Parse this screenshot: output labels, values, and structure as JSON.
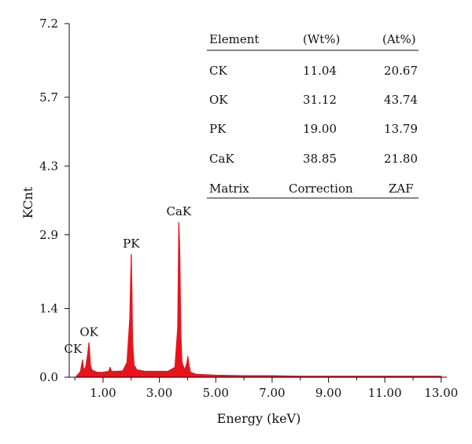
{
  "chart_data": {
    "type": "area",
    "xlabel": "Energy (keV)",
    "ylabel": "KCnt",
    "xlim": [
      -0.2,
      13.2
    ],
    "ylim": [
      0,
      7.2
    ],
    "x_ticks": [
      1.0,
      3.0,
      5.0,
      7.0,
      9.0,
      11.0,
      13.0
    ],
    "x_tick_labels": [
      "1.00",
      "3.00",
      "5.00",
      "7.00",
      "9.00",
      "11.00",
      "13.00"
    ],
    "y_ticks": [
      0.0,
      1.4,
      2.9,
      4.3,
      5.7,
      7.2
    ],
    "y_tick_labels": [
      "0.0",
      "1.4",
      "2.9",
      "4.3",
      "5.7",
      "7.2"
    ],
    "grid": false,
    "series_color": "#e8141c",
    "series": [
      {
        "x": [
          0.05,
          0.1,
          0.15,
          0.2,
          0.25,
          0.27,
          0.3,
          0.35,
          0.4,
          0.45,
          0.5,
          0.52,
          0.55,
          0.6,
          0.7,
          0.8,
          1.0,
          1.2,
          1.25,
          1.3,
          1.5,
          1.7,
          1.85,
          1.95,
          2.0,
          2.02,
          2.05,
          2.1,
          2.2,
          2.5,
          3.0,
          3.3,
          3.55,
          3.65,
          3.69,
          3.72,
          3.76,
          3.8,
          3.9,
          3.98,
          4.01,
          4.05,
          4.1,
          4.3,
          5.0,
          6.0,
          7.0,
          8.0,
          9.0,
          10.0,
          11.0,
          12.0,
          13.0
        ],
        "y": [
          0.02,
          0.05,
          0.08,
          0.12,
          0.28,
          0.35,
          0.2,
          0.15,
          0.25,
          0.45,
          0.7,
          0.55,
          0.25,
          0.15,
          0.12,
          0.1,
          0.1,
          0.12,
          0.2,
          0.12,
          0.12,
          0.13,
          0.3,
          1.2,
          2.5,
          1.9,
          0.7,
          0.25,
          0.15,
          0.12,
          0.12,
          0.12,
          0.2,
          1.0,
          3.15,
          2.6,
          0.9,
          0.3,
          0.15,
          0.3,
          0.42,
          0.25,
          0.1,
          0.06,
          0.04,
          0.03,
          0.03,
          0.02,
          0.02,
          0.02,
          0.02,
          0.02,
          0.02
        ]
      }
    ],
    "annotations": [
      {
        "text": "CK",
        "x": 0.27,
        "y": 0.35
      },
      {
        "text": "OK",
        "x": 0.5,
        "y": 0.7
      },
      {
        "text": "PK",
        "x": 2.0,
        "y": 2.5
      },
      {
        "text": "CaK",
        "x": 3.69,
        "y": 3.15
      }
    ]
  },
  "table": {
    "headers": [
      "Element",
      "(Wt%)",
      "(At%)"
    ],
    "rows": [
      [
        "CK",
        "11.04",
        "20.67"
      ],
      [
        "OK",
        "31.12",
        "43.74"
      ],
      [
        "PK",
        "19.00",
        "13.79"
      ],
      [
        "CaK",
        "38.85",
        "21.80"
      ]
    ],
    "footer": [
      "Matrix",
      "Correction",
      "ZAF"
    ]
  }
}
